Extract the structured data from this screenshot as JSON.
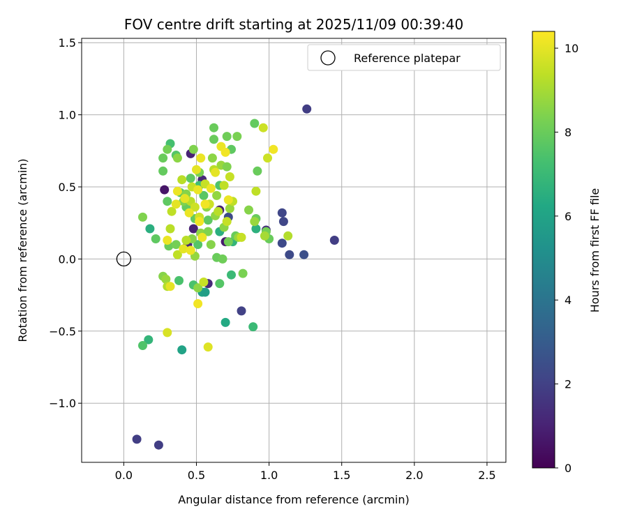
{
  "chart_data": {
    "type": "scatter",
    "title": "FOV centre drift starting at 2025/11/09 00:39:40",
    "xlabel": "Angular distance from reference (arcmin)",
    "ylabel": "Rotation from reference (arcmin)",
    "xlim": [
      -0.29,
      2.63
    ],
    "ylim": [
      -1.41,
      1.53
    ],
    "xticks": [
      0.0,
      0.5,
      1.0,
      1.5,
      2.0,
      2.5
    ],
    "xtick_labels": [
      "0.0",
      "0.5",
      "1.0",
      "1.5",
      "2.0",
      "2.5"
    ],
    "yticks": [
      -1.0,
      -0.5,
      0.0,
      0.5,
      1.0,
      1.5
    ],
    "ytick_labels": [
      "−1.0",
      "−0.5",
      "0.0",
      "0.5",
      "1.0",
      "1.5"
    ],
    "grid": true,
    "legend": {
      "position": "top-right",
      "entries": [
        "Reference platepar"
      ]
    },
    "reference_point": {
      "x": 0.0,
      "y": 0.0,
      "label": "Reference platepar"
    },
    "colorbar": {
      "label": "Hours from first FF file",
      "range": [
        0,
        10.4
      ],
      "ticks": [
        0,
        2,
        4,
        6,
        8,
        10
      ],
      "tick_labels": [
        "0",
        "2",
        "4",
        "6",
        "8",
        "10"
      ],
      "colormap": "viridis"
    },
    "points": [
      {
        "x": 1.26,
        "y": 1.04,
        "h": 1.9
      },
      {
        "x": 1.45,
        "y": 0.13,
        "h": 1.9
      },
      {
        "x": 1.09,
        "y": 0.32,
        "h": 2.2
      },
      {
        "x": 1.1,
        "y": 0.26,
        "h": 2.2
      },
      {
        "x": 1.09,
        "y": 0.11,
        "h": 2.3
      },
      {
        "x": 1.14,
        "y": 0.03,
        "h": 2.3
      },
      {
        "x": 1.24,
        "y": 0.03,
        "h": 2.5
      },
      {
        "x": 0.81,
        "y": -0.36,
        "h": 2.0
      },
      {
        "x": 0.09,
        "y": -1.25,
        "h": 1.9
      },
      {
        "x": 0.24,
        "y": -1.29,
        "h": 1.9
      },
      {
        "x": 0.72,
        "y": 0.29,
        "h": 2.3
      },
      {
        "x": 0.98,
        "y": 0.2,
        "h": 1.4
      },
      {
        "x": 0.28,
        "y": 0.48,
        "h": 0.6
      },
      {
        "x": 0.46,
        "y": 0.73,
        "h": 1.0
      },
      {
        "x": 0.48,
        "y": 0.21,
        "h": 1.0
      },
      {
        "x": 0.54,
        "y": 0.55,
        "h": 1.2
      },
      {
        "x": 0.58,
        "y": -0.17,
        "h": 1.2
      },
      {
        "x": 0.7,
        "y": 0.12,
        "h": 0.8
      },
      {
        "x": 0.44,
        "y": 0.1,
        "h": 1.2
      },
      {
        "x": 0.66,
        "y": 0.34,
        "h": 0.9
      },
      {
        "x": 0.4,
        "y": -0.63,
        "h": 6.0
      },
      {
        "x": 0.54,
        "y": -0.23,
        "h": 6.0
      },
      {
        "x": 0.56,
        "y": -0.23,
        "h": 5.8
      },
      {
        "x": 0.7,
        "y": -0.44,
        "h": 6.3
      },
      {
        "x": 0.18,
        "y": 0.21,
        "h": 6.5
      },
      {
        "x": 0.17,
        "y": -0.56,
        "h": 6.8
      },
      {
        "x": 0.66,
        "y": 0.19,
        "h": 6.5
      },
      {
        "x": 0.89,
        "y": -0.47,
        "h": 7.0
      },
      {
        "x": 0.74,
        "y": -0.11,
        "h": 7.0
      },
      {
        "x": 0.91,
        "y": 0.21,
        "h": 6.6
      },
      {
        "x": 0.52,
        "y": 0.51,
        "h": 7.2
      },
      {
        "x": 0.75,
        "y": 0.12,
        "h": 6.8
      },
      {
        "x": 0.32,
        "y": 0.8,
        "h": 7.3
      },
      {
        "x": 0.66,
        "y": 0.51,
        "h": 7.5
      },
      {
        "x": 0.13,
        "y": -0.6,
        "h": 7.5
      },
      {
        "x": 0.38,
        "y": -0.15,
        "h": 7.4
      },
      {
        "x": 0.48,
        "y": -0.18,
        "h": 7.4
      },
      {
        "x": 0.66,
        "y": -0.17,
        "h": 7.6
      },
      {
        "x": 0.22,
        "y": 0.14,
        "h": 7.8
      },
      {
        "x": 0.27,
        "y": 0.61,
        "h": 7.9
      },
      {
        "x": 0.3,
        "y": 0.4,
        "h": 7.8
      },
      {
        "x": 0.36,
        "y": 0.72,
        "h": 7.6
      },
      {
        "x": 0.39,
        "y": 0.46,
        "h": 7.7
      },
      {
        "x": 0.43,
        "y": 0.36,
        "h": 7.9
      },
      {
        "x": 0.46,
        "y": 0.56,
        "h": 7.8
      },
      {
        "x": 0.49,
        "y": 0.28,
        "h": 7.9
      },
      {
        "x": 0.51,
        "y": 0.1,
        "h": 7.6
      },
      {
        "x": 0.55,
        "y": 0.44,
        "h": 7.7
      },
      {
        "x": 0.58,
        "y": 0.27,
        "h": 7.8
      },
      {
        "x": 0.62,
        "y": 0.91,
        "h": 8.0
      },
      {
        "x": 0.62,
        "y": 0.83,
        "h": 8.0
      },
      {
        "x": 0.64,
        "y": 0.01,
        "h": 8.0
      },
      {
        "x": 0.68,
        "y": 0.0,
        "h": 8.1
      },
      {
        "x": 0.71,
        "y": 0.85,
        "h": 8.1
      },
      {
        "x": 0.72,
        "y": 0.12,
        "h": 8.2
      },
      {
        "x": 0.74,
        "y": 0.76,
        "h": 7.8
      },
      {
        "x": 0.77,
        "y": 0.16,
        "h": 8.0
      },
      {
        "x": 0.78,
        "y": 0.85,
        "h": 8.3
      },
      {
        "x": 0.82,
        "y": -0.1,
        "h": 8.3
      },
      {
        "x": 0.86,
        "y": 0.34,
        "h": 8.5
      },
      {
        "x": 0.9,
        "y": 0.94,
        "h": 7.9
      },
      {
        "x": 0.91,
        "y": 0.28,
        "h": 8.0
      },
      {
        "x": 0.92,
        "y": 0.61,
        "h": 8.0
      },
      {
        "x": 0.98,
        "y": 0.19,
        "h": 8.2
      },
      {
        "x": 1.0,
        "y": 0.14,
        "h": 8.0
      },
      {
        "x": 0.13,
        "y": 0.29,
        "h": 8.4
      },
      {
        "x": 0.27,
        "y": -0.12,
        "h": 8.5
      },
      {
        "x": 0.29,
        "y": -0.14,
        "h": 8.8
      },
      {
        "x": 0.27,
        "y": 0.7,
        "h": 8.0
      },
      {
        "x": 0.3,
        "y": 0.76,
        "h": 8.2
      },
      {
        "x": 0.31,
        "y": 0.09,
        "h": 8.0
      },
      {
        "x": 0.36,
        "y": 0.1,
        "h": 8.2
      },
      {
        "x": 0.37,
        "y": 0.7,
        "h": 8.6
      },
      {
        "x": 0.41,
        "y": 0.4,
        "h": 8.4
      },
      {
        "x": 0.43,
        "y": 0.45,
        "h": 8.5
      },
      {
        "x": 0.47,
        "y": 0.14,
        "h": 8.5
      },
      {
        "x": 0.48,
        "y": 0.76,
        "h": 8.4
      },
      {
        "x": 0.49,
        "y": 0.02,
        "h": 8.7
      },
      {
        "x": 0.51,
        "y": -0.2,
        "h": 8.6
      },
      {
        "x": 0.52,
        "y": 0.6,
        "h": 8.3
      },
      {
        "x": 0.53,
        "y": 0.18,
        "h": 8.6
      },
      {
        "x": 0.57,
        "y": 0.36,
        "h": 8.6
      },
      {
        "x": 0.58,
        "y": 0.19,
        "h": 8.4
      },
      {
        "x": 0.6,
        "y": 0.1,
        "h": 8.5
      },
      {
        "x": 0.61,
        "y": 0.7,
        "h": 8.6
      },
      {
        "x": 0.63,
        "y": 0.3,
        "h": 8.7
      },
      {
        "x": 0.64,
        "y": 0.44,
        "h": 8.7
      },
      {
        "x": 0.67,
        "y": 0.65,
        "h": 8.8
      },
      {
        "x": 0.69,
        "y": 0.22,
        "h": 8.6
      },
      {
        "x": 0.71,
        "y": 0.64,
        "h": 8.4
      },
      {
        "x": 0.73,
        "y": 0.35,
        "h": 8.8
      },
      {
        "x": 0.79,
        "y": 0.15,
        "h": 8.8
      },
      {
        "x": 0.9,
        "y": 0.26,
        "h": 8.8
      },
      {
        "x": 0.97,
        "y": 0.16,
        "h": 9.0
      },
      {
        "x": 1.13,
        "y": 0.16,
        "h": 9.2
      },
      {
        "x": 0.3,
        "y": -0.19,
        "h": 9.2
      },
      {
        "x": 0.32,
        "y": 0.21,
        "h": 9.3
      },
      {
        "x": 0.33,
        "y": 0.33,
        "h": 9.4
      },
      {
        "x": 0.37,
        "y": 0.03,
        "h": 9.4
      },
      {
        "x": 0.4,
        "y": 0.55,
        "h": 9.3
      },
      {
        "x": 0.43,
        "y": 0.13,
        "h": 9.3
      },
      {
        "x": 0.46,
        "y": 0.4,
        "h": 9.3
      },
      {
        "x": 0.47,
        "y": 0.5,
        "h": 9.5
      },
      {
        "x": 0.49,
        "y": 0.36,
        "h": 9.6
      },
      {
        "x": 0.52,
        "y": 0.29,
        "h": 9.6
      },
      {
        "x": 0.55,
        "y": -0.16,
        "h": 9.5
      },
      {
        "x": 0.56,
        "y": 0.52,
        "h": 9.5
      },
      {
        "x": 0.59,
        "y": 0.38,
        "h": 9.6
      },
      {
        "x": 0.62,
        "y": 0.62,
        "h": 9.3
      },
      {
        "x": 0.65,
        "y": 0.33,
        "h": 9.3
      },
      {
        "x": 0.69,
        "y": 0.51,
        "h": 9.4
      },
      {
        "x": 0.71,
        "y": 0.26,
        "h": 9.5
      },
      {
        "x": 0.73,
        "y": 0.57,
        "h": 9.5
      },
      {
        "x": 0.75,
        "y": 0.4,
        "h": 9.4
      },
      {
        "x": 0.81,
        "y": 0.15,
        "h": 9.5
      },
      {
        "x": 0.91,
        "y": 0.47,
        "h": 9.4
      },
      {
        "x": 0.96,
        "y": 0.91,
        "h": 9.6
      },
      {
        "x": 0.99,
        "y": 0.7,
        "h": 9.6
      },
      {
        "x": 0.3,
        "y": -0.51,
        "h": 9.8
      },
      {
        "x": 0.32,
        "y": -0.19,
        "h": 10.0
      },
      {
        "x": 0.3,
        "y": 0.13,
        "h": 10.1
      },
      {
        "x": 0.37,
        "y": 0.47,
        "h": 10.1
      },
      {
        "x": 0.41,
        "y": 0.07,
        "h": 10.0
      },
      {
        "x": 0.42,
        "y": 0.42,
        "h": 10.0
      },
      {
        "x": 0.45,
        "y": 0.32,
        "h": 10.1
      },
      {
        "x": 0.46,
        "y": 0.06,
        "h": 10.1
      },
      {
        "x": 0.5,
        "y": 0.62,
        "h": 10.0
      },
      {
        "x": 0.51,
        "y": 0.48,
        "h": 10.1
      },
      {
        "x": 0.51,
        "y": -0.31,
        "h": 10.2
      },
      {
        "x": 0.53,
        "y": 0.7,
        "h": 10.1
      },
      {
        "x": 0.54,
        "y": 0.15,
        "h": 10.1
      },
      {
        "x": 0.56,
        "y": 0.38,
        "h": 10.2
      },
      {
        "x": 0.58,
        "y": -0.61,
        "h": 9.9
      },
      {
        "x": 0.6,
        "y": 0.49,
        "h": 10.1
      },
      {
        "x": 0.63,
        "y": 0.6,
        "h": 10.0
      },
      {
        "x": 0.67,
        "y": 0.78,
        "h": 10.1
      },
      {
        "x": 0.7,
        "y": 0.74,
        "h": 10.2
      },
      {
        "x": 0.72,
        "y": 0.41,
        "h": 10.1
      },
      {
        "x": 1.03,
        "y": 0.76,
        "h": 10.2
      },
      {
        "x": 0.52,
        "y": 0.26,
        "h": 10.2
      },
      {
        "x": 0.36,
        "y": 0.38,
        "h": 10.0
      }
    ]
  }
}
